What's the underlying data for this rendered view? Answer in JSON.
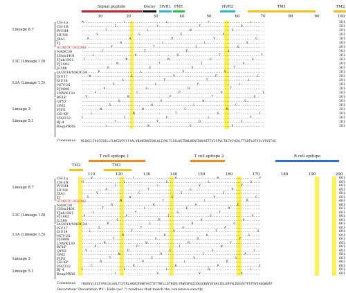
{
  "panel1": {
    "regions": [
      {
        "label": "Signal peptide",
        "color": "#c0202a"
      },
      {
        "label": "Decoy",
        "color": "#111111"
      },
      {
        "label": "HVR1",
        "color": "#2bb8d0"
      },
      {
        "label": "PNE",
        "color": "#2fbf4a"
      },
      {
        "label": "HVR2",
        "color": "#2bb8d0"
      },
      {
        "label": "TM1",
        "color": "#f2c21a"
      },
      {
        "label": "TM2",
        "color": "#f2c21a"
      }
    ],
    "ticks": [
      "10",
      "20",
      "30",
      "40",
      "50",
      "60",
      "70",
      "80",
      "90",
      "100"
    ],
    "lineages": [
      "Lineage 8.7",
      "L1C (Lineage 1.8)",
      "L1A (Lineage 1.5)",
      "Lineage 3",
      "Lineage 5.1"
    ],
    "row_end": "301",
    "consensus": "MLGKCLTAGCCSQLLFLWCIVPFCFAALVNANSNSSSHLQLIYNLTICELNGTDWLNEKFDWAVETFVIFPVLTHIVSYGALTTSHFLDTVGLVTVSTAG"
  },
  "panel2": {
    "regions": [
      {
        "label": "TM2",
        "color": "#f2c21a"
      },
      {
        "label": "T cell epitope 1",
        "color": "#f08a1c"
      },
      {
        "label": "TM3",
        "color": "#f2c21a"
      },
      {
        "label": "T cell epitope 2",
        "color": "#f08a1c"
      },
      {
        "label": "B cell epitope",
        "color": "#2a6fd0"
      }
    ],
    "ticks": [
      "110",
      "120",
      "130",
      "140",
      "150",
      "160",
      "170",
      "180",
      "190",
      "200"
    ],
    "lineages": [
      "Lineage 8.7",
      "L1C (Lineage 1.8)",
      "L1A (Lineage 1.5)",
      "Lineage 3",
      "Lineage 5.1"
    ],
    "row_end": "601",
    "consensus": "YHGRYVLSSIYAVCALAALTCVIRLAKNCMSWRYACTRYTNFLLDTKGRLYRWRSPVIIEKGGKVEVEGHLIDLKRVVLDGSVATPITRVSAEQWGRP",
    "footnote": "Decoration 'Decoration #1': Hide (as\".\") residues that match the consensus exactly"
  },
  "strains": [
    "CH-1a",
    "CH-1R",
    "WUH4",
    "HUN4",
    "JXA1",
    "TJ",
    "SCABTC-202302",
    "NADC30",
    "CHsx1401",
    "TJnh1501",
    "FJ1402",
    "JL580",
    "IA/2014/NADC34",
    "ISU17",
    "ISU14",
    "NCV-25",
    "FJ0908",
    "LNWK130",
    "RFLP",
    "QYYZ",
    "GM2",
    "FJFS",
    "GD-XP",
    "VR2332",
    "BJ-4",
    "RespPRRS",
    "Consensus"
  ],
  "highlight_strain": "SCABTC-202302"
}
